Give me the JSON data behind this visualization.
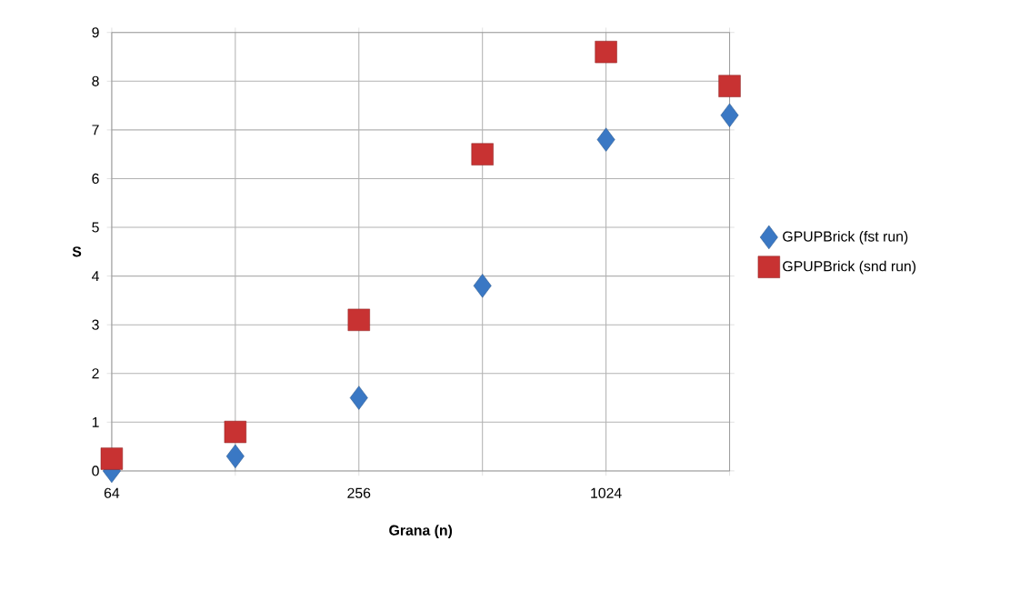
{
  "chart_data": {
    "type": "scatter",
    "xlabel": "Grana (n)",
    "ylabel": "S",
    "x": [
      64,
      128,
      256,
      512,
      1024,
      2048
    ],
    "log": "x",
    "xlim": [
      64,
      2048
    ],
    "xticks": [
      64,
      {
        "value": 128,
        "label": null
      },
      256,
      {
        "value": 512,
        "label": null
      },
      1024,
      {
        "value": 2048,
        "label": null
      }
    ],
    "ylim": [
      0,
      9
    ],
    "yticks": [
      0,
      1,
      2,
      3,
      4,
      5,
      6,
      7,
      8,
      9
    ],
    "grid": true,
    "legend": "right",
    "series": [
      {
        "name": "GPUPBrick (fst run)",
        "color": "#3a78c4",
        "marker": "diamond",
        "values": [
          0.0,
          0.3,
          1.5,
          3.8,
          6.8,
          7.3
        ]
      },
      {
        "name": "GPUPBrick (snd run)",
        "color": "#c83232",
        "marker": "square",
        "values": [
          0.25,
          0.8,
          3.1,
          6.5,
          8.6,
          7.9
        ]
      }
    ]
  }
}
